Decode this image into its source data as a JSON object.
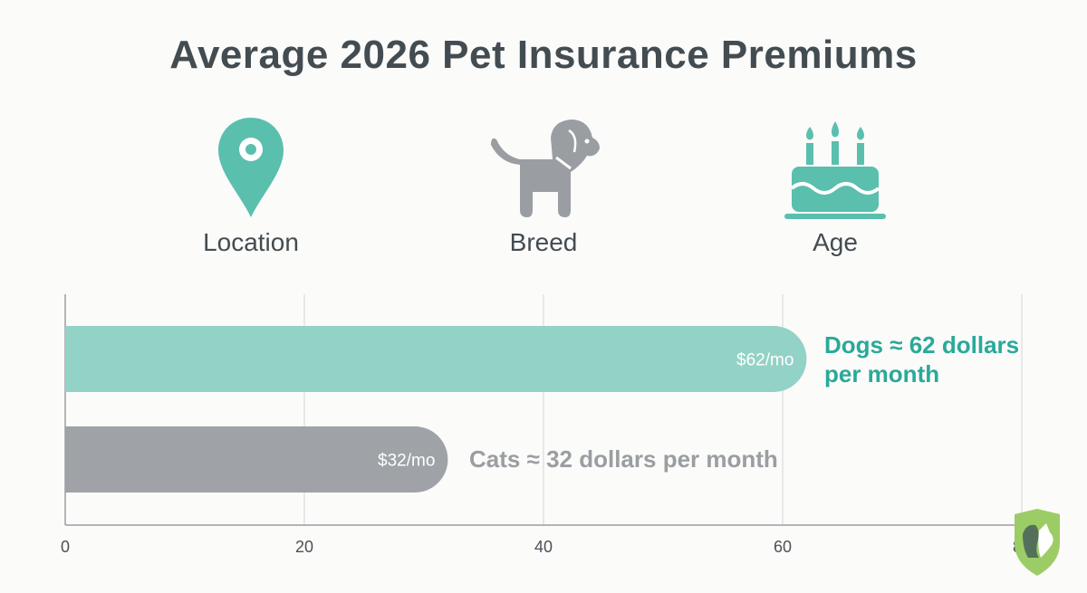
{
  "title": "Average 2026 Pet Insurance Premiums",
  "factors": [
    {
      "label": "Location",
      "icon": "map-pin-icon",
      "color": "#5bbfae"
    },
    {
      "label": "Breed",
      "icon": "dog-icon",
      "color": "#9a9ea2"
    },
    {
      "label": "Age",
      "icon": "birthday-cake-icon",
      "color": "#5bbfae"
    }
  ],
  "chart_data": {
    "type": "bar",
    "orientation": "horizontal",
    "categories": [
      "Dogs",
      "Cats"
    ],
    "values": [
      62,
      32
    ],
    "bar_labels": [
      "$62/mo",
      "$32/mo"
    ],
    "annotations": [
      "Dogs ≈ 62 dollars per month",
      "Cats ≈ 32 dollars per month"
    ],
    "colors": [
      "#93d2c7",
      "#9fa3a7"
    ],
    "annotation_colors": [
      "#2aa99a",
      "#9a9ea1"
    ],
    "xlim": [
      0,
      80
    ],
    "xticks": [
      "0",
      "20",
      "40",
      "60",
      "80"
    ],
    "grid": true
  },
  "logo": {
    "icon": "shield-pet-logo-icon",
    "color": "#9ccc65"
  }
}
